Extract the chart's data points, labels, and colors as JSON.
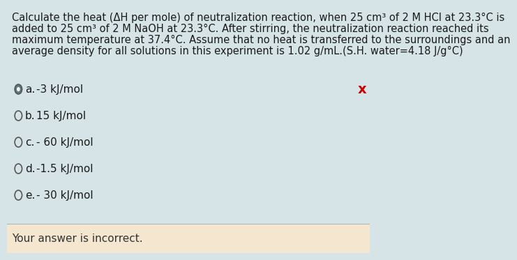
{
  "background_color": "#d6e4e8",
  "footer_color": "#f5e6d0",
  "question_text_lines": [
    "Calculate the heat (ΔH per mole) of neutralization reaction, when 25 cm³ of 2 M HCl at 23.3°C is",
    "added to 25 cm³ of 2 M NaOH at 23.3°C. After stirring, the neutralization reaction reached its",
    "maximum temperature at 37.4°C. Assume that no heat is transferred to the surroundings and an",
    "average density for all solutions in this experiment is 1.02 g/mL.(S.H. water=4.18 J/g°C)"
  ],
  "options": [
    {
      "label": "a.",
      "text": "-3 kJ/mol",
      "selected": true
    },
    {
      "label": "b.",
      "text": "15 kJ/mol",
      "selected": false
    },
    {
      "label": "c.",
      "text": "- 60 kJ/mol",
      "selected": false
    },
    {
      "label": "d.",
      "text": "-1.5 kJ/mol",
      "selected": false
    },
    {
      "label": "e.",
      "text": "- 30 kJ/mol",
      "selected": false
    }
  ],
  "footer_text": "Your answer is incorrect.",
  "incorrect_mark": "x",
  "text_color": "#1a1a1a",
  "footer_text_color": "#333333",
  "incorrect_mark_color": "#cc0000",
  "question_fontsize": 10.5,
  "option_fontsize": 11,
  "footer_fontsize": 11
}
